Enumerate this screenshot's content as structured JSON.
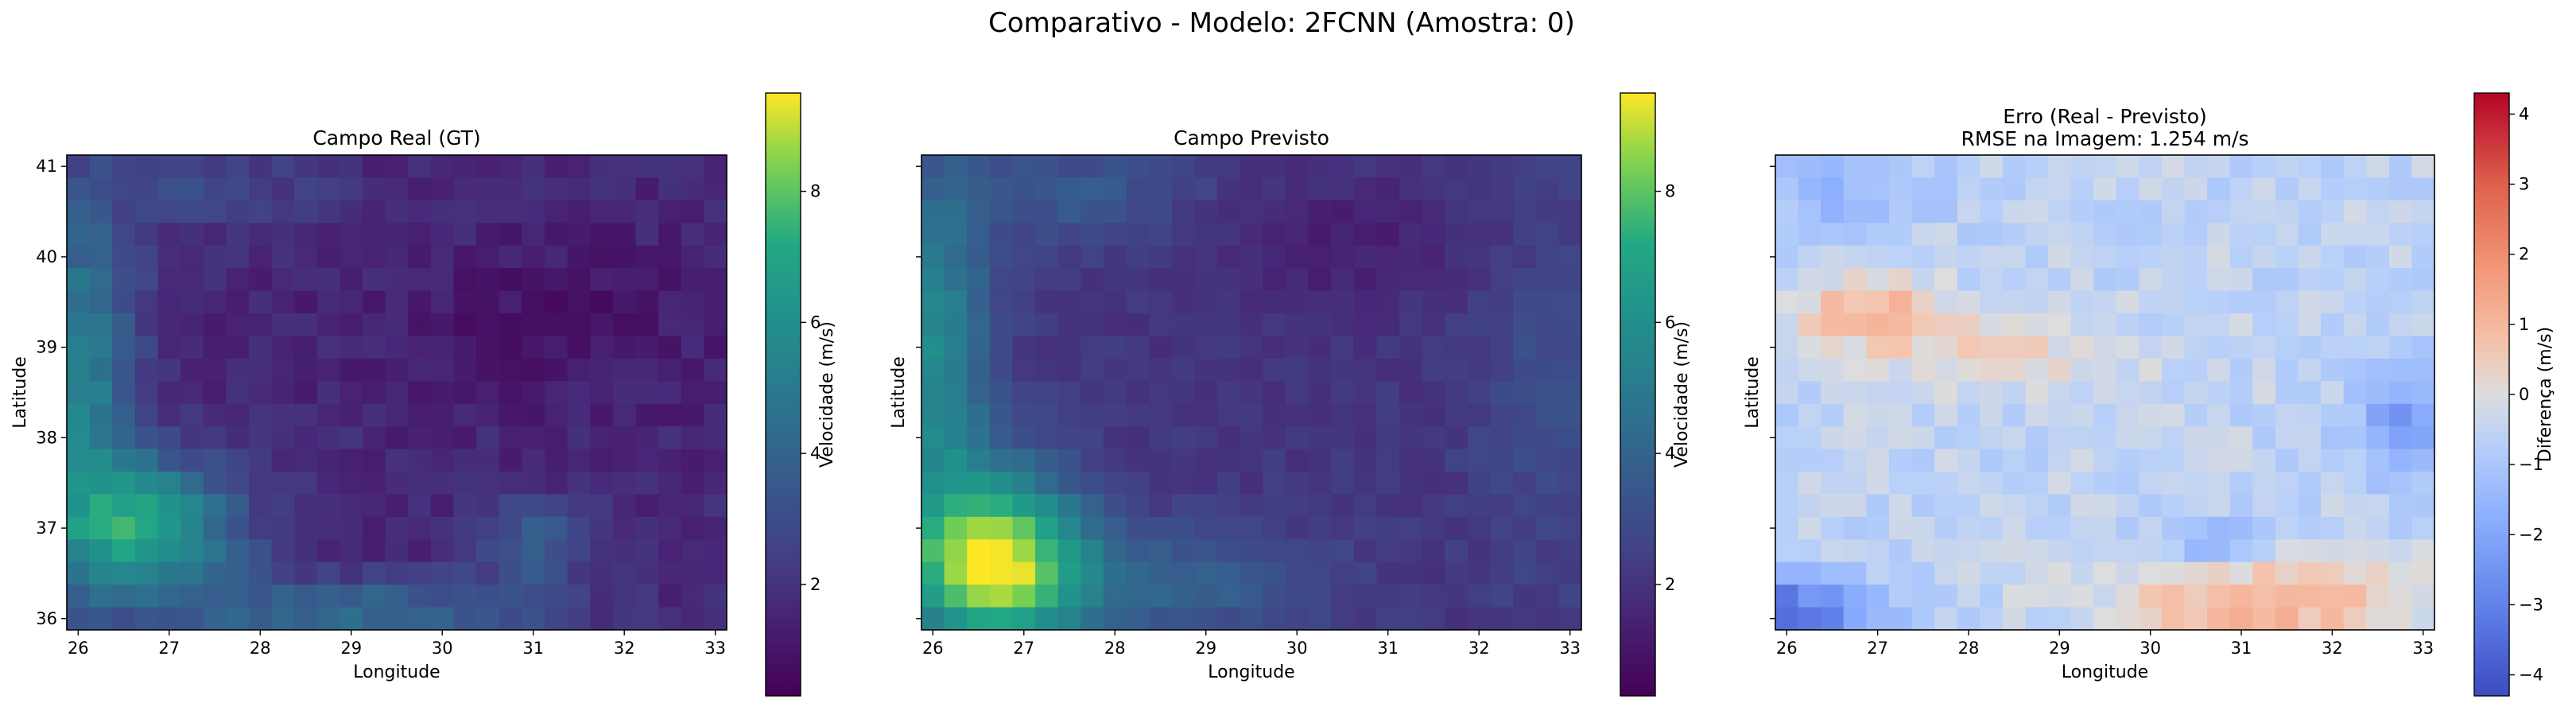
{
  "figure": {
    "suptitle": "Comparativo - Modelo: 2FCNN (Amostra: 0)"
  },
  "chart_data": [
    {
      "type": "heatmap",
      "title": "Campo Real (GT)",
      "xlabel": "Longitude",
      "ylabel": "Latitude",
      "xlim": [
        25.875,
        33.125
      ],
      "ylim": [
        35.875,
        41.125
      ],
      "x_ticks": [
        "26",
        "27",
        "28",
        "29",
        "30",
        "31",
        "32",
        "33"
      ],
      "y_ticks": [
        "36",
        "37",
        "38",
        "39",
        "40",
        "41"
      ],
      "grid_shape": [
        21,
        29
      ],
      "colormap": "viridis",
      "colorbar": {
        "label": "Velocidade (m/s)",
        "vmin": 0.3,
        "vmax": 9.5,
        "ticks": [
          "2",
          "4",
          "6",
          "8"
        ]
      },
      "field_summary": {
        "max_region": "southwest corner (lon 26-27.5, lat 36.5-37.5) ~6.5-7 m/s",
        "west_band": "lon 26-26.5 along lat 37-40 ~4.5-6.5 m/s",
        "south_band": "lat 36-36.5 across lon 27-31 ~4-5 m/s",
        "interior": "mostly 1-2.5 m/s",
        "secondary_patch": "near lon 31, lat 36.5-37 ~4-4.5 m/s"
      }
    },
    {
      "type": "heatmap",
      "title": "Campo Previsto",
      "xlabel": "Longitude",
      "ylabel": "Latitude",
      "xlim": [
        25.875,
        33.125
      ],
      "ylim": [
        35.875,
        41.125
      ],
      "x_ticks": [
        "26",
        "27",
        "28",
        "29",
        "30",
        "31",
        "32",
        "33"
      ],
      "y_ticks": [
        "36",
        "37",
        "38",
        "39",
        "40",
        "41"
      ],
      "grid_shape": [
        21,
        29
      ],
      "colormap": "viridis",
      "colorbar": {
        "label": "Velocidade (m/s)",
        "vmin": 0.3,
        "vmax": 9.5,
        "ticks": [
          "2",
          "4",
          "6",
          "8"
        ]
      },
      "field_summary": {
        "max_region": "southwest corner (lon 26-27.5, lat 36-37.5) ~8.5-9.2 m/s",
        "west_band": "lon 26-26.5 along lat 37-40.5 ~4.5-6.5 m/s",
        "interior": "mostly 1.5-3.5 m/s",
        "minimum": "north-central (lon 29.5-31.5, lat 40-40.5) ~1.2 m/s"
      }
    },
    {
      "type": "heatmap",
      "title": "Erro (Real - Previsto)",
      "subtitle": "RMSE na Imagem: 1.254 m/s",
      "xlabel": "Longitude",
      "ylabel": "Latitude",
      "xlim": [
        25.875,
        33.125
      ],
      "ylim": [
        35.875,
        41.125
      ],
      "x_ticks": [
        "26",
        "27",
        "28",
        "29",
        "30",
        "31",
        "32",
        "33"
      ],
      "y_ticks": [
        "36",
        "37",
        "38",
        "39",
        "40",
        "41"
      ],
      "grid_shape": [
        21,
        29
      ],
      "colormap": "coolwarm",
      "colorbar": {
        "label": "Diferença (m/s)",
        "vmin": -4.3,
        "vmax": 4.3,
        "ticks": [
          "−4",
          "−3",
          "−2",
          "−1",
          "0",
          "1",
          "2",
          "3",
          "4"
        ]
      },
      "field_summary": {
        "most_negative": "southwest corner (lon 26-27, lat 36-36.5) ~ -3.5 m/s",
        "negative_patch_east": "lon 32.5-33, lat 37.5-38.5 ~ -2.5 m/s",
        "positive_band": "lon 29.5-32.5, lat 36-36.5 ~ +1 to +1.5 m/s",
        "positive_patch_northwest": "lon 26.5-27.5, lat 39-39.5 ~ +1 m/s",
        "background": "mostly -1 to 0 m/s"
      }
    }
  ]
}
